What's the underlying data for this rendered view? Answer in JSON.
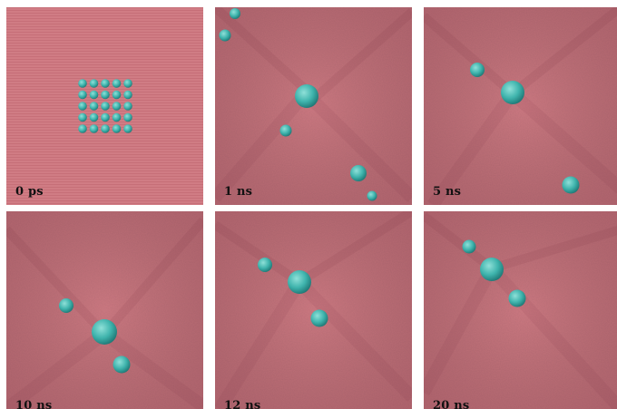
{
  "colors": {
    "membrane": "#cf7a82",
    "membrane_dark": "#a85a66",
    "membrane_light": "#e3a0a6",
    "particle": "#3fb4ad",
    "particle_dark": "#1f7c7a",
    "particle_light": "#86dcd5"
  },
  "panels": [
    {
      "label": "0 ps"
    },
    {
      "label": "1 ns"
    },
    {
      "label": "5 ns"
    },
    {
      "label": "10 ns"
    },
    {
      "label": "12 ns"
    },
    {
      "label": "20 ns"
    }
  ]
}
